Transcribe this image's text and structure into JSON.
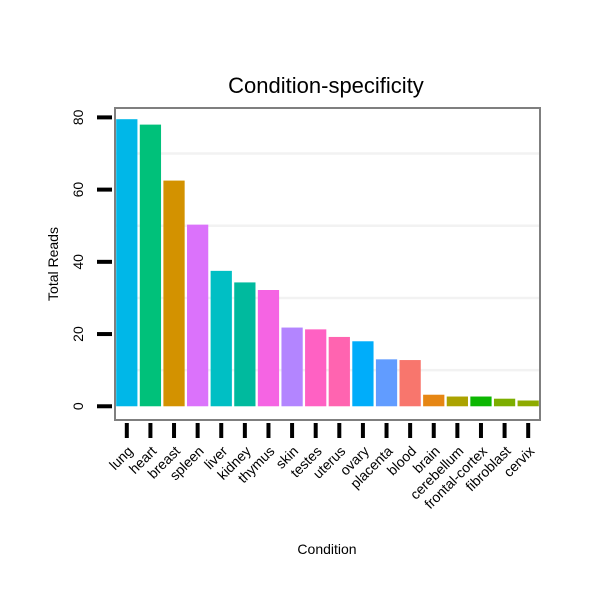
{
  "chart_data": {
    "type": "bar",
    "title": "Condition-specificity",
    "xlabel": "Condition",
    "ylabel": "Total Reads",
    "ylim": [
      -3.8,
      82.6
    ],
    "yticks": [
      0,
      20,
      40,
      60,
      80
    ],
    "ytick_labels": [
      "0",
      "20",
      "40",
      "60",
      "80"
    ],
    "minor_gridlines": [
      10,
      30,
      50,
      70
    ],
    "categories": [
      "lung",
      "heart",
      "breast",
      "spleen",
      "liver",
      "kidney",
      "thymus",
      "skin",
      "testes",
      "uterus",
      "ovary",
      "placenta",
      "blood",
      "brain",
      "cerebellum",
      "frontal-cortex",
      "fibroblast",
      "cervix"
    ],
    "values": [
      79.5,
      78,
      62.5,
      50.3,
      37.5,
      34.3,
      32.2,
      21.8,
      21.3,
      19.2,
      18,
      13,
      12.8,
      3.2,
      2.7,
      2.7,
      2.1,
      1.6
    ],
    "colors": [
      "#00B7E8",
      "#00C17A",
      "#D39200",
      "#DB72FB",
      "#00BFC4",
      "#00BA9E",
      "#F564E3",
      "#B385FF",
      "#FF61C3",
      "#FF64B0",
      "#00ADFA",
      "#619CFF",
      "#F8766D",
      "#E68613",
      "#ABA300",
      "#0CB702",
      "#7CAE00",
      "#8EAB00"
    ]
  }
}
